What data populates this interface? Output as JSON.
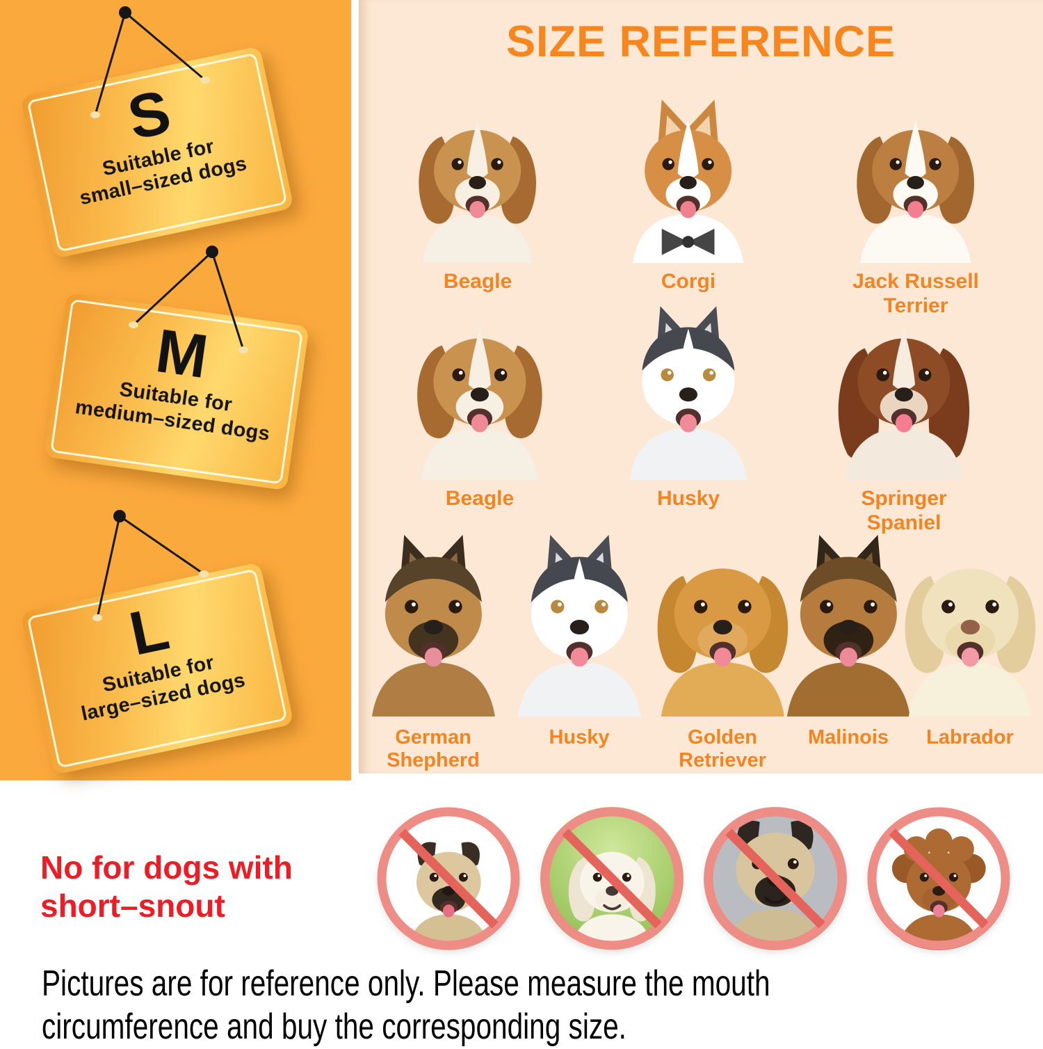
{
  "palette": {
    "left_panel_bg": "#faa93c",
    "right_panel_bg": "#fce8d5",
    "title_color": "#f6861d",
    "breed_label_color": "#f5831f",
    "warning_red": "#ee1c24",
    "prohibit_ring": "#ee8c86",
    "tag_text": "#121212"
  },
  "left_panel": {
    "tags": [
      {
        "size": "S",
        "line1": "Suitable for",
        "line2": "small–sized dogs"
      },
      {
        "size": "M",
        "line1": "Suitable for",
        "line2": "medium–sized dogs"
      },
      {
        "size": "L",
        "line1": "Suitable for",
        "line2": "large–sized dogs"
      }
    ]
  },
  "reference": {
    "title": "SIZE REFERENCE",
    "rows": [
      {
        "dogs": [
          {
            "breed": "Beagle",
            "ears": "floppy",
            "mouth": "open",
            "colors": {
              "fur": "#c9924f",
              "ear": "#a76b31",
              "blaze": "#f7f0e2",
              "muzzle": "#f7f0e2",
              "chest": "#f6efe4",
              "tongue": "#ef8a96"
            }
          },
          {
            "breed": "Corgi",
            "ears": "pointy",
            "mouth": "open",
            "extra": "bowtie",
            "colors": {
              "fur": "#d78f45",
              "ear": "#cb8640",
              "earInner": "#f2d3ab",
              "blaze": "#ffffff",
              "muzzle": "#ffffff",
              "chest": "#ffffff",
              "tongue": "#f0808e"
            }
          },
          {
            "breed": "Jack Russell Terrier",
            "ears": "floppy",
            "mouth": "open",
            "colors": {
              "fur": "#bd7f41",
              "ear": "#a2672e",
              "blaze": "#fdfaf4",
              "muzzle": "#fdfaf4",
              "chest": "#fdfaf4",
              "tongue": "#f27e90"
            }
          }
        ]
      },
      {
        "dogs": [
          {
            "breed": "Beagle",
            "ears": "floppy",
            "mouth": "open",
            "colors": {
              "fur": "#c9924f",
              "ear": "#a76b31",
              "blaze": "#f7f0e2",
              "muzzle": "#f7f0e2",
              "chest": "#f6efe4",
              "tongue": "#ef8a96"
            }
          },
          {
            "breed": "Husky",
            "ears": "pointy",
            "mouth": "open",
            "colors": {
              "fur": "#ffffff",
              "mask": "#45484e",
              "ear": "#4a4d53",
              "earInner": "#dadcde",
              "blaze": "#ffffff",
              "muzzle": "#ffffff",
              "chest": "#f1f2f3",
              "eye": "#b98a3e",
              "tongue": "#f28b99"
            }
          },
          {
            "breed": "Springer Spaniel",
            "ears": "floppy-long",
            "mouth": "open",
            "colors": {
              "fur": "#8d4c25",
              "ear": "#7a3c1c",
              "blaze": "#f6ece0",
              "muzzle": "#e9d5c0",
              "chest": "#f3e9dc",
              "tongue": "#f27e90"
            }
          }
        ]
      },
      {
        "dogs": [
          {
            "breed": "German Shepherd",
            "ears": "pointy",
            "mouth": "open",
            "colors": {
              "fur": "#bf8a4a",
              "mask": "#57422a",
              "ear": "#3b2e1e",
              "earInner": "#8a6a42",
              "muzzle": "#43331f",
              "chest": "#b07d45",
              "tongue": "#e88f9c"
            }
          },
          {
            "breed": "Husky",
            "ears": "pointy",
            "mouth": "open",
            "colors": {
              "fur": "#ffffff",
              "mask": "#45484e",
              "ear": "#4a4d53",
              "earInner": "#dadcde",
              "blaze": "#ffffff",
              "muzzle": "#ffffff",
              "chest": "#f1f2f3",
              "eye": "#b98a3e",
              "tongue": "#f28b99"
            }
          },
          {
            "breed": "Golden Retriever",
            "ears": "floppy",
            "mouth": "open",
            "colors": {
              "fur": "#d99a43",
              "ear": "#c5872f",
              "muzzle": "#e0a95d",
              "chest": "#e2ab56",
              "tongue": "#ef8a96"
            }
          },
          {
            "breed": "Malinois",
            "ears": "pointy",
            "mouth": "open",
            "colors": {
              "fur": "#b57c3d",
              "mask": "#6d4d28",
              "ear": "#33271a",
              "earInner": "#7d5c33",
              "muzzle": "#2f2114",
              "chest": "#a26d31",
              "tongue": "#ee8a98"
            }
          },
          {
            "breed": "Labrador",
            "ears": "floppy",
            "mouth": "open",
            "colors": {
              "fur": "#f0e2bd",
              "ear": "#e3cd9c",
              "muzzle": "#ead9ad",
              "chest": "#f7f0da",
              "nose": "#95604a",
              "tongue": "#f29aa6"
            }
          }
        ]
      }
    ]
  },
  "warning": {
    "line1": "No for dogs with",
    "line2": "short–snout",
    "prohibited": [
      {
        "name": "pug",
        "bg": "white",
        "ears": "button",
        "mouth": "open",
        "colors": {
          "fur": "#dcc79e",
          "ear": "#3a2e24",
          "muzzle": "#33291f",
          "chest": "#d5c093",
          "tongue": "#e56f81",
          "nose": "#201913"
        }
      },
      {
        "name": "white fluffy puppy",
        "bg": "grass green",
        "ears": "floppy",
        "mouth": "closed",
        "colors": {
          "fur": "#f8f4ea",
          "ear": "#eee4d2",
          "muzzle": "#f4eee0",
          "chest": "#f8f4ea",
          "nose": "#433a33"
        }
      },
      {
        "name": "pug close-up",
        "bg": "grey",
        "ears": "button",
        "mouth": "closed",
        "colors": {
          "fur": "#d8c59d",
          "ear": "#2e2620",
          "muzzle": "#2b231d",
          "chest": "#cebc94",
          "nose": "#1c1712"
        }
      },
      {
        "name": "brown toy poodle",
        "bg": "white",
        "ears": "curly",
        "mouth": "open",
        "colors": {
          "fur": "#ae6a33",
          "ear": "#9a5a28",
          "muzzle": "#a46231",
          "chest": "#ae6a33",
          "tongue": "#ef7f92",
          "nose": "#2b1c11"
        }
      }
    ]
  },
  "footer": {
    "line1": "Pictures are for reference only. Please measure the mouth",
    "line2": "circumference and buy the corresponding size."
  }
}
